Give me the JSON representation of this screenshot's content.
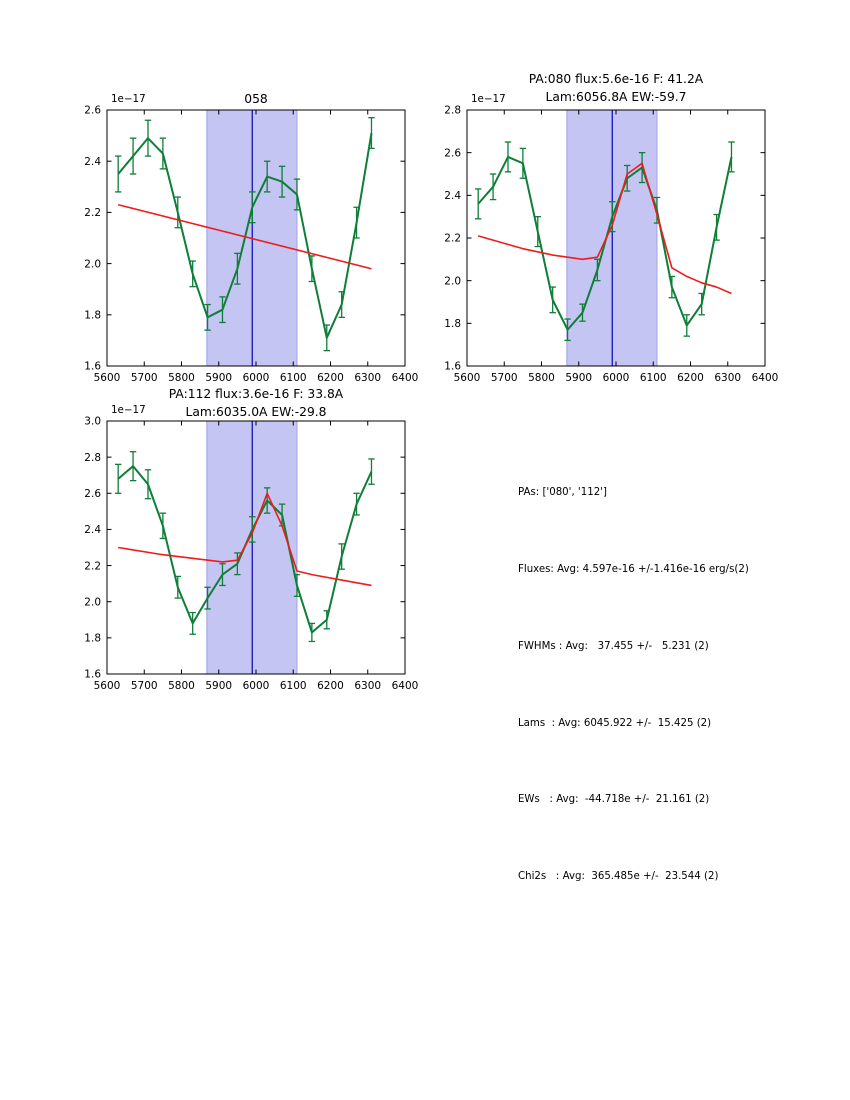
{
  "colors": {
    "spectrum": "#0e7e38",
    "fit": "#ee1c1c",
    "band": "#c5c5f3",
    "band_edge": "#a0a0e6",
    "vline": "#2020c0",
    "axis": "#000000",
    "background": "#ffffff"
  },
  "chart_data": [
    {
      "id": "058",
      "type": "line",
      "title_lines": [
        "058"
      ],
      "offset_text": "1e−17",
      "xlim": [
        5600,
        6400
      ],
      "ylim": [
        1.6,
        2.6
      ],
      "xticks": [
        5600,
        5700,
        5800,
        5900,
        6000,
        6100,
        6200,
        6300,
        6400
      ],
      "yticks": [
        1.6,
        1.8,
        2.0,
        2.2,
        2.4,
        2.6
      ],
      "band_x": [
        5868,
        6110
      ],
      "vline_x": 5990,
      "x": [
        5630,
        5670,
        5710,
        5750,
        5790,
        5830,
        5870,
        5910,
        5950,
        5990,
        6030,
        6070,
        6110,
        6150,
        6190,
        6230,
        6270,
        6310
      ],
      "series": [
        {
          "name": "spectrum",
          "y": [
            2.35,
            2.42,
            2.49,
            2.43,
            2.2,
            1.96,
            1.79,
            1.82,
            1.98,
            2.22,
            2.34,
            2.32,
            2.27,
            1.98,
            1.71,
            1.84,
            2.16,
            2.51
          ],
          "yerr": [
            0.07,
            0.07,
            0.07,
            0.06,
            0.06,
            0.05,
            0.05,
            0.05,
            0.06,
            0.06,
            0.06,
            0.06,
            0.06,
            0.05,
            0.05,
            0.05,
            0.06,
            0.06
          ]
        },
        {
          "name": "continuum_fit",
          "points": [
            [
              5630,
              2.23
            ],
            [
              6310,
              1.98
            ]
          ]
        }
      ]
    },
    {
      "id": "pa080",
      "type": "line",
      "title_lines": [
        "PA:080 flux:5.6e-16 F: 41.2A",
        "Lam:6056.8A EW:-59.7"
      ],
      "offset_text": "1e−17",
      "xlim": [
        5600,
        6400
      ],
      "ylim": [
        1.6,
        2.8
      ],
      "xticks": [
        5600,
        5700,
        5800,
        5900,
        6000,
        6100,
        6200,
        6300,
        6400
      ],
      "yticks": [
        1.6,
        1.8,
        2.0,
        2.2,
        2.4,
        2.6,
        2.8
      ],
      "band_x": [
        5868,
        6110
      ],
      "vline_x": 5990,
      "x": [
        5630,
        5670,
        5710,
        5750,
        5790,
        5830,
        5870,
        5910,
        5950,
        5990,
        6030,
        6070,
        6110,
        6150,
        6190,
        6230,
        6270,
        6310
      ],
      "series": [
        {
          "name": "spectrum",
          "y": [
            2.36,
            2.44,
            2.58,
            2.55,
            2.23,
            1.91,
            1.77,
            1.85,
            2.05,
            2.3,
            2.48,
            2.53,
            2.33,
            1.97,
            1.79,
            1.89,
            2.25,
            2.58
          ],
          "yerr": [
            0.07,
            0.06,
            0.07,
            0.07,
            0.07,
            0.06,
            0.05,
            0.04,
            0.05,
            0.07,
            0.06,
            0.07,
            0.06,
            0.05,
            0.05,
            0.05,
            0.06,
            0.07
          ]
        },
        {
          "name": "gaussian_fit",
          "points": [
            [
              5630,
              2.21
            ],
            [
              5750,
              2.15
            ],
            [
              5830,
              2.12
            ],
            [
              5910,
              2.1
            ],
            [
              5950,
              2.11
            ],
            [
              5990,
              2.26
            ],
            [
              6030,
              2.5
            ],
            [
              6070,
              2.55
            ],
            [
              6110,
              2.31
            ],
            [
              6150,
              2.06
            ],
            [
              6190,
              2.02
            ],
            [
              6230,
              1.99
            ],
            [
              6270,
              1.97
            ],
            [
              6310,
              1.94
            ]
          ]
        }
      ]
    },
    {
      "id": "pa112",
      "type": "line",
      "title_lines": [
        "PA:112 flux:3.6e-16 F: 33.8A",
        "Lam:6035.0A EW:-29.8"
      ],
      "offset_text": "1e−17",
      "xlim": [
        5600,
        6400
      ],
      "ylim": [
        1.6,
        3.0
      ],
      "xticks": [
        5600,
        5700,
        5800,
        5900,
        6000,
        6100,
        6200,
        6300,
        6400
      ],
      "yticks": [
        1.6,
        1.8,
        2.0,
        2.2,
        2.4,
        2.6,
        2.8,
        3.0
      ],
      "band_x": [
        5868,
        6110
      ],
      "vline_x": 5990,
      "x": [
        5630,
        5670,
        5710,
        5750,
        5790,
        5830,
        5870,
        5910,
        5950,
        5990,
        6030,
        6070,
        6110,
        6150,
        6190,
        6230,
        6270,
        6310
      ],
      "series": [
        {
          "name": "spectrum",
          "y": [
            2.68,
            2.75,
            2.65,
            2.42,
            2.08,
            1.88,
            2.02,
            2.15,
            2.21,
            2.4,
            2.56,
            2.48,
            2.09,
            1.83,
            1.9,
            2.25,
            2.54,
            2.72
          ],
          "yerr": [
            0.08,
            0.08,
            0.08,
            0.07,
            0.06,
            0.06,
            0.06,
            0.06,
            0.06,
            0.07,
            0.07,
            0.06,
            0.06,
            0.05,
            0.05,
            0.07,
            0.06,
            0.07
          ]
        },
        {
          "name": "gaussian_fit",
          "points": [
            [
              5630,
              2.3
            ],
            [
              5750,
              2.26
            ],
            [
              5830,
              2.24
            ],
            [
              5910,
              2.22
            ],
            [
              5950,
              2.23
            ],
            [
              5990,
              2.38
            ],
            [
              6030,
              2.6
            ],
            [
              6070,
              2.42
            ],
            [
              6110,
              2.17
            ],
            [
              6150,
              2.15
            ],
            [
              6230,
              2.12
            ],
            [
              6310,
              2.09
            ]
          ]
        }
      ]
    }
  ],
  "stats_panel": {
    "lines": [
      "PAs: ['080', '112']",
      "Fluxes: Avg: 4.597e-16 +/-1.416e-16 erg/s(2)",
      "FWHMs : Avg:   37.455 +/-   5.231 (2)",
      "Lams  : Avg: 6045.922 +/-  15.425 (2)",
      "EWs   : Avg:  -44.718e +/-  21.161 (2)",
      "Chi2s   : Avg:  365.485e +/-  23.544 (2)"
    ]
  }
}
